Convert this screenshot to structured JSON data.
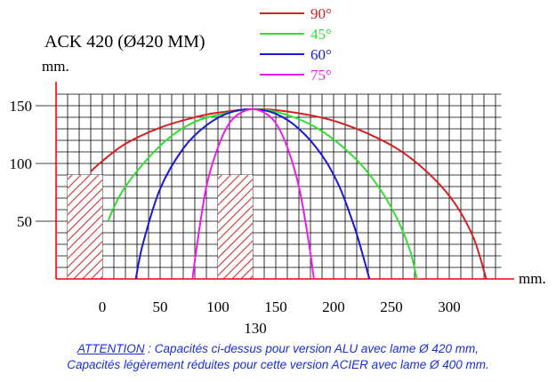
{
  "chart_data": {
    "type": "line",
    "title": "ACK 420 (Ø420 MM)",
    "xlabel": "mm.",
    "ylabel": "mm.",
    "xlim": [
      -40,
      345
    ],
    "ylim": [
      0,
      150
    ],
    "x_ticks": [
      0,
      50,
      100,
      150,
      200,
      250,
      300
    ],
    "y_ticks": [
      50,
      100,
      150
    ],
    "extra_x_tick": "130",
    "grid": true,
    "legend_position": "top-center",
    "series": [
      {
        "name": "90°",
        "color": "#d42020",
        "x": [
          -10,
          0,
          20,
          50,
          80,
          100,
          130,
          160,
          200,
          240,
          270,
          300,
          320,
          332
        ],
        "y": [
          93,
          102,
          117,
          131,
          140,
          144,
          147,
          145,
          137,
          121,
          102,
          72,
          38,
          0
        ]
      },
      {
        "name": "45°",
        "color": "#33dd33",
        "x": [
          5,
          10,
          20,
          40,
          60,
          80,
          100,
          130,
          160,
          190,
          220,
          240,
          255,
          266,
          272
        ],
        "y": [
          50,
          62,
          80,
          105,
          124,
          136,
          142,
          147,
          142,
          128,
          103,
          78,
          52,
          25,
          0
        ]
      },
      {
        "name": "60°",
        "color": "#1a1acc",
        "x": [
          29,
          35,
          50,
          70,
          90,
          110,
          130,
          150,
          170,
          190,
          205,
          218,
          226,
          231
        ],
        "y": [
          0,
          30,
          78,
          113,
          133,
          144,
          147,
          143,
          130,
          107,
          80,
          45,
          18,
          0
        ]
      },
      {
        "name": "75°",
        "color": "#e81ee8",
        "x": [
          78,
          82,
          90,
          100,
          110,
          120,
          130,
          140,
          150,
          160,
          170,
          178,
          183
        ],
        "y": [
          0,
          30,
          80,
          114,
          135,
          144,
          147,
          144,
          135,
          114,
          80,
          35,
          0
        ]
      }
    ],
    "hatched_blocks": [
      {
        "x": [
          -30,
          0
        ],
        "y": [
          0,
          90
        ]
      },
      {
        "x": [
          100,
          130
        ],
        "y": [
          0,
          90
        ]
      }
    ]
  },
  "colors": {
    "grid": "#000000",
    "axis": "#ff0000",
    "hatch": "#cc3333",
    "note": "#1a2fd0"
  },
  "note": {
    "attention": "ATTENTION",
    "line1_rest": " : Capacités ci-dessus pour version ALU avec lame Ø 420 mm,",
    "line2": "Capacités légèrement réduites pour cette version ACIER avec lame Ø 400 mm."
  }
}
